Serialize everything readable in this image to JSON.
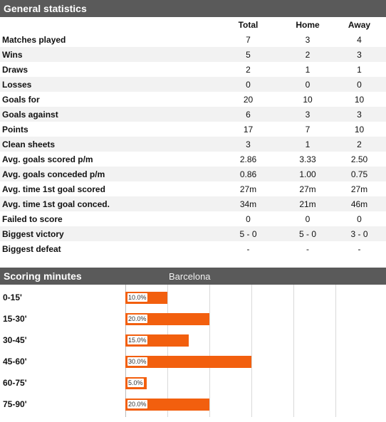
{
  "general": {
    "title": "General statistics",
    "columns": [
      "",
      "Total",
      "Home",
      "Away"
    ],
    "rows": [
      {
        "label": "Matches played",
        "total": "7",
        "home": "3",
        "away": "4"
      },
      {
        "label": "Wins",
        "total": "5",
        "home": "2",
        "away": "3"
      },
      {
        "label": "Draws",
        "total": "2",
        "home": "1",
        "away": "1"
      },
      {
        "label": "Losses",
        "total": "0",
        "home": "0",
        "away": "0"
      },
      {
        "label": "Goals for",
        "total": "20",
        "home": "10",
        "away": "10"
      },
      {
        "label": "Goals against",
        "total": "6",
        "home": "3",
        "away": "3"
      },
      {
        "label": "Points",
        "total": "17",
        "home": "7",
        "away": "10"
      },
      {
        "label": "Clean sheets",
        "total": "3",
        "home": "1",
        "away": "2"
      },
      {
        "label": "Avg. goals scored p/m",
        "total": "2.86",
        "home": "3.33",
        "away": "2.50"
      },
      {
        "label": "Avg. goals conceded p/m",
        "total": "0.86",
        "home": "1.00",
        "away": "0.75"
      },
      {
        "label": "Avg. time 1st goal scored",
        "total": "27m",
        "home": "27m",
        "away": "27m"
      },
      {
        "label": "Avg. time 1st goal conced.",
        "total": "34m",
        "home": "21m",
        "away": "46m"
      },
      {
        "label": "Failed to score",
        "total": "0",
        "home": "0",
        "away": "0"
      },
      {
        "label": "Biggest victory",
        "total": "5 - 0",
        "home": "5 - 0",
        "away": "3 - 0"
      },
      {
        "label": "Biggest defeat",
        "total": "-",
        "home": "-",
        "away": "-"
      }
    ]
  },
  "scoring": {
    "title": "Scoring minutes",
    "team": "Barcelona",
    "bar_color": "#f25f0e"
  },
  "chart_data": {
    "type": "bar",
    "orientation": "horizontal",
    "categories": [
      "0-15'",
      "15-30'",
      "30-45'",
      "45-60'",
      "60-75'",
      "75-90'"
    ],
    "values": [
      10.0,
      20.0,
      15.0,
      30.0,
      5.0,
      20.0
    ],
    "labels": [
      "10.0%",
      "20.0%",
      "15.0%",
      "30.0%",
      "5.0%",
      "20.0%"
    ],
    "xlim": [
      0,
      60
    ],
    "grid": true
  }
}
